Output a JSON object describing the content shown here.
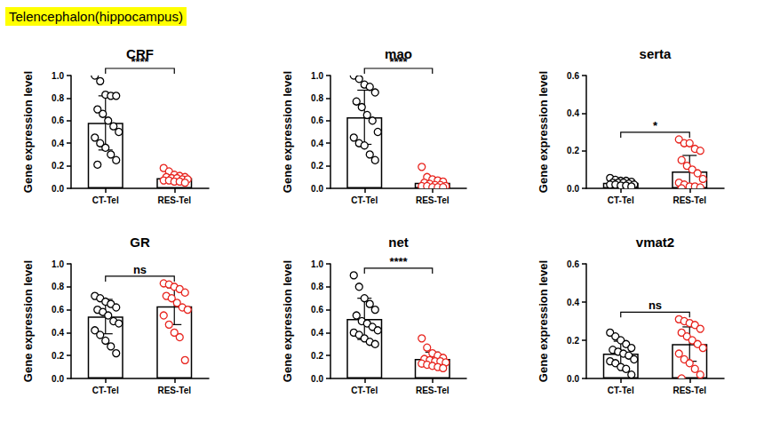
{
  "header": "Telencephalon(hippocampus)",
  "chart_data": [
    {
      "type": "bar",
      "title": "CRF",
      "y_label": "Gene expression level",
      "categories": [
        "CT-Tel",
        "RES-Tel"
      ],
      "values": [
        0.58,
        0.09
      ],
      "error": [
        0.24,
        0.04
      ],
      "points": [
        [
          1.0,
          0.95,
          0.83,
          0.82,
          0.82,
          0.7,
          0.66,
          0.6,
          0.55,
          0.5,
          0.45,
          0.4,
          0.36,
          0.3,
          0.25,
          0.21
        ],
        [
          0.18,
          0.15,
          0.12,
          0.11,
          0.1,
          0.1,
          0.09,
          0.09,
          0.08,
          0.08,
          0.07,
          0.07,
          0.06,
          0.06,
          0.05
        ]
      ],
      "color": "#ffffff",
      "colors": [
        "#000000",
        "#e8251f"
      ],
      "annotation": "****",
      "ylim": [
        0,
        1
      ],
      "yticks": [
        {
          "value": 0,
          "label": "0.0"
        },
        0.2,
        0.4,
        0.6,
        0.8,
        {
          "value": 1,
          "label": "1.0"
        }
      ]
    },
    {
      "type": "bar",
      "title": "mao",
      "y_label": "Gene expression level",
      "categories": [
        "CT-Tel",
        "RES-Tel"
      ],
      "values": [
        0.63,
        0.05
      ],
      "error": [
        0.24,
        0.04
      ],
      "points": [
        [
          1.0,
          0.97,
          0.92,
          0.9,
          0.85,
          0.77,
          0.72,
          0.65,
          0.6,
          0.5,
          0.45,
          0.4,
          0.38,
          0.3,
          0.25
        ],
        [
          0.19,
          0.1,
          0.08,
          0.07,
          0.06,
          0.05,
          0.04,
          0.03,
          0.03,
          0.02,
          0.02,
          0.02,
          0.01,
          0.01,
          0.01
        ]
      ],
      "color": "#ffffff",
      "colors": [
        "#000000",
        "#e8251f"
      ],
      "annotation": "****",
      "ylim": [
        0,
        1
      ],
      "yticks": [
        {
          "value": 0,
          "label": "0.0"
        },
        0.2,
        0.4,
        0.6,
        0.8,
        {
          "value": 1,
          "label": "1.0"
        }
      ]
    },
    {
      "type": "bar",
      "title": "serta",
      "y_label": "Gene expression level",
      "categories": [
        "CT-Tel",
        "RES-Tel"
      ],
      "values": [
        0.03,
        0.09
      ],
      "error": [
        0.01,
        0.085
      ],
      "points": [
        [
          0.055,
          0.045,
          0.04,
          0.04,
          0.035,
          0.03,
          0.03,
          0.03,
          0.025,
          0.02,
          0.02,
          0.02,
          0.015,
          0.015,
          0.01
        ],
        [
          0.26,
          0.24,
          0.24,
          0.21,
          0.2,
          0.15,
          0.12,
          0.1,
          0.08,
          0.05,
          0.03,
          0.02,
          0.01,
          0.01,
          0.005,
          0.0
        ]
      ],
      "color": "#ffffff",
      "colors": [
        "#000000",
        "#e8251f"
      ],
      "annotation": "*",
      "ylim": [
        0,
        0.6
      ],
      "yticks": [
        {
          "value": 0,
          "label": "0.0"
        },
        0.2,
        0.4,
        0.6
      ]
    },
    {
      "type": "bar",
      "title": "GR",
      "y_label": "Gene expression level",
      "categories": [
        "CT-Tel",
        "RES-Tel"
      ],
      "values": [
        0.54,
        0.63
      ],
      "error": [
        0.15,
        0.16
      ],
      "points": [
        [
          0.72,
          0.7,
          0.67,
          0.65,
          0.62,
          0.6,
          0.58,
          0.55,
          0.5,
          0.48,
          0.42,
          0.38,
          0.33,
          0.28,
          0.22
        ],
        [
          0.83,
          0.82,
          0.8,
          0.78,
          0.75,
          0.72,
          0.7,
          0.66,
          0.62,
          0.6,
          0.55,
          0.47,
          0.4,
          0.36,
          0.16
        ]
      ],
      "color": "#ffffff",
      "colors": [
        "#000000",
        "#e8251f"
      ],
      "annotation": "ns",
      "ylim": [
        0,
        1
      ],
      "yticks": [
        {
          "value": 0,
          "label": "0.0"
        },
        0.2,
        0.4,
        0.6,
        0.8,
        {
          "value": 1,
          "label": "1.0"
        }
      ]
    },
    {
      "type": "bar",
      "title": "net",
      "y_label": "Gene expression level",
      "categories": [
        "CT-Tel",
        "RES-Tel"
      ],
      "values": [
        0.52,
        0.17
      ],
      "error": [
        0.18,
        0.06
      ],
      "points": [
        [
          0.9,
          0.8,
          0.7,
          0.65,
          0.6,
          0.55,
          0.5,
          0.48,
          0.45,
          0.42,
          0.4,
          0.38,
          0.35,
          0.32,
          0.3
        ],
        [
          0.35,
          0.27,
          0.22,
          0.2,
          0.18,
          0.17,
          0.16,
          0.15,
          0.15,
          0.14,
          0.13,
          0.12,
          0.11,
          0.1,
          0.09
        ]
      ],
      "color": "#ffffff",
      "colors": [
        "#000000",
        "#e8251f"
      ],
      "annotation": "****",
      "ylim": [
        0,
        1
      ],
      "yticks": [
        {
          "value": 0,
          "label": "0.0"
        },
        0.2,
        0.4,
        0.6,
        0.8,
        {
          "value": 1,
          "label": "1.0"
        }
      ]
    },
    {
      "type": "bar",
      "title": "vmat2",
      "y_label": "Gene expression level",
      "categories": [
        "CT-Tel",
        "RES-Tel"
      ],
      "values": [
        0.13,
        0.18
      ],
      "error": [
        0.065,
        0.09
      ],
      "points": [
        [
          0.24,
          0.22,
          0.2,
          0.18,
          0.16,
          0.15,
          0.14,
          0.13,
          0.12,
          0.1,
          0.09,
          0.08,
          0.06,
          0.05,
          0.02
        ],
        [
          0.31,
          0.3,
          0.29,
          0.28,
          0.26,
          0.24,
          0.22,
          0.2,
          0.18,
          0.16,
          0.13,
          0.1,
          0.08,
          0.05,
          0.02,
          0.0
        ]
      ],
      "color": "#ffffff",
      "colors": [
        "#000000",
        "#e8251f"
      ],
      "annotation": "ns",
      "ylim": [
        0,
        0.6
      ],
      "yticks": [
        {
          "value": 0,
          "label": "0.0"
        },
        0.2,
        0.4,
        0.6
      ]
    }
  ]
}
